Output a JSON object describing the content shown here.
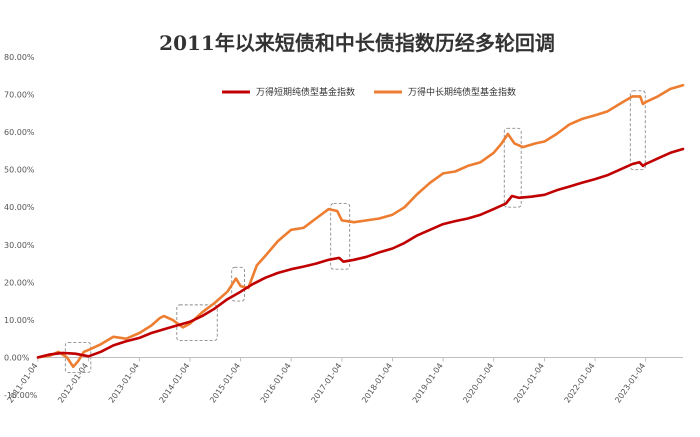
{
  "chart_data": {
    "type": "line",
    "title": "2011年以来短债和中长债指数历经多轮回调",
    "xlabel": "",
    "ylabel": "",
    "ylim": [
      -10,
      80
    ],
    "yticks": [
      "80.00%",
      "70.00%",
      "60.00%",
      "50.00%",
      "40.00%",
      "30.00%",
      "20.00%",
      "10.00%",
      "0.00%",
      "-10.00%"
    ],
    "xticks": [
      "2011-01-04",
      "2012-01-04",
      "2013-01-04",
      "2014-01-04",
      "2015-01-04",
      "2016-01-04",
      "2017-01-04",
      "2018-01-04",
      "2019-01-04",
      "2020-01-04",
      "2021-01-04",
      "2022-01-04",
      "2023-01-04"
    ],
    "xlim": [
      "2011-01-04",
      "2023-09-30"
    ],
    "legend_position": "top-center",
    "grid": false,
    "series": [
      {
        "name": "万得短期纯债型基金指数",
        "color": "#c00000",
        "points": [
          [
            "2011-01-04",
            0
          ],
          [
            "2011-04-01",
            0.8
          ],
          [
            "2011-07-01",
            1.2
          ],
          [
            "2011-10-01",
            1.0
          ],
          [
            "2012-01-04",
            0.3
          ],
          [
            "2012-04-01",
            1.5
          ],
          [
            "2012-07-01",
            3.2
          ],
          [
            "2012-10-01",
            4.3
          ],
          [
            "2013-01-04",
            5.2
          ],
          [
            "2013-04-01",
            6.5
          ],
          [
            "2013-07-01",
            7.5
          ],
          [
            "2013-10-01",
            8.5
          ],
          [
            "2014-01-04",
            9.5
          ],
          [
            "2014-04-01",
            11.0
          ],
          [
            "2014-07-01",
            13.0
          ],
          [
            "2014-10-01",
            15.5
          ],
          [
            "2015-01-04",
            17.5
          ],
          [
            "2015-04-01",
            19.5
          ],
          [
            "2015-07-01",
            21.2
          ],
          [
            "2015-10-01",
            22.5
          ],
          [
            "2016-01-04",
            23.5
          ],
          [
            "2016-04-01",
            24.2
          ],
          [
            "2016-07-01",
            25.0
          ],
          [
            "2016-10-01",
            26.0
          ],
          [
            "2016-12-15",
            26.5
          ],
          [
            "2017-01-15",
            25.5
          ],
          [
            "2017-04-01",
            26.0
          ],
          [
            "2017-07-01",
            26.8
          ],
          [
            "2017-10-01",
            28.0
          ],
          [
            "2018-01-04",
            29.0
          ],
          [
            "2018-04-01",
            30.5
          ],
          [
            "2018-07-01",
            32.5
          ],
          [
            "2018-10-01",
            34.0
          ],
          [
            "2019-01-04",
            35.5
          ],
          [
            "2019-04-01",
            36.3
          ],
          [
            "2019-07-01",
            37.0
          ],
          [
            "2019-10-01",
            38.0
          ],
          [
            "2020-01-04",
            39.5
          ],
          [
            "2020-04-01",
            41.0
          ],
          [
            "2020-05-15",
            43.0
          ],
          [
            "2020-07-01",
            42.5
          ],
          [
            "2020-10-01",
            42.8
          ],
          [
            "2021-01-04",
            43.3
          ],
          [
            "2021-04-01",
            44.5
          ],
          [
            "2021-07-01",
            45.5
          ],
          [
            "2021-10-01",
            46.5
          ],
          [
            "2022-01-04",
            47.5
          ],
          [
            "2022-04-01",
            48.5
          ],
          [
            "2022-07-01",
            50.0
          ],
          [
            "2022-10-01",
            51.5
          ],
          [
            "2022-11-20",
            52.0
          ],
          [
            "2022-12-15",
            51.0
          ],
          [
            "2023-01-04",
            51.5
          ],
          [
            "2023-04-01",
            53.0
          ],
          [
            "2023-07-01",
            54.5
          ],
          [
            "2023-09-30",
            55.5
          ]
        ]
      },
      {
        "name": "万得中长期纯债型基金指数",
        "color": "#ed7d31",
        "points": [
          [
            "2011-01-04",
            0
          ],
          [
            "2011-04-01",
            0.5
          ],
          [
            "2011-06-01",
            1.5
          ],
          [
            "2011-08-01",
            0
          ],
          [
            "2011-09-15",
            -2.5
          ],
          [
            "2011-10-20",
            -1.0
          ],
          [
            "2011-12-01",
            1.5
          ],
          [
            "2012-01-04",
            2.0
          ],
          [
            "2012-04-01",
            3.5
          ],
          [
            "2012-07-01",
            5.5
          ],
          [
            "2012-10-01",
            5.0
          ],
          [
            "2013-01-04",
            6.5
          ],
          [
            "2013-04-01",
            8.5
          ],
          [
            "2013-06-01",
            10.5
          ],
          [
            "2013-07-01",
            11.0
          ],
          [
            "2013-09-01",
            10.0
          ],
          [
            "2013-11-15",
            8.0
          ],
          [
            "2014-01-04",
            9.0
          ],
          [
            "2014-04-01",
            12.0
          ],
          [
            "2014-07-01",
            14.5
          ],
          [
            "2014-10-01",
            17.5
          ],
          [
            "2014-12-01",
            21.0
          ],
          [
            "2015-01-04",
            19.0
          ],
          [
            "2015-03-01",
            18.5
          ],
          [
            "2015-05-01",
            24.5
          ],
          [
            "2015-07-01",
            27.0
          ],
          [
            "2015-10-01",
            31.0
          ],
          [
            "2016-01-04",
            34.0
          ],
          [
            "2016-04-01",
            34.5
          ],
          [
            "2016-07-01",
            37.0
          ],
          [
            "2016-10-01",
            39.5
          ],
          [
            "2016-12-01",
            39.0
          ],
          [
            "2017-01-04",
            36.5
          ],
          [
            "2017-04-01",
            36.0
          ],
          [
            "2017-07-01",
            36.5
          ],
          [
            "2017-10-01",
            37.0
          ],
          [
            "2018-01-04",
            38.0
          ],
          [
            "2018-04-01",
            40.0
          ],
          [
            "2018-07-01",
            43.5
          ],
          [
            "2018-10-01",
            46.5
          ],
          [
            "2019-01-04",
            49.0
          ],
          [
            "2019-04-01",
            49.5
          ],
          [
            "2019-07-01",
            51.0
          ],
          [
            "2019-10-01",
            52.0
          ],
          [
            "2020-01-04",
            54.5
          ],
          [
            "2020-03-01",
            57.0
          ],
          [
            "2020-04-15",
            59.5
          ],
          [
            "2020-06-01",
            57.0
          ],
          [
            "2020-08-01",
            56.0
          ],
          [
            "2020-11-01",
            57.0
          ],
          [
            "2021-01-04",
            57.5
          ],
          [
            "2021-04-01",
            59.5
          ],
          [
            "2021-07-01",
            62.0
          ],
          [
            "2021-10-01",
            63.5
          ],
          [
            "2022-01-04",
            64.5
          ],
          [
            "2022-04-01",
            65.5
          ],
          [
            "2022-07-01",
            67.5
          ],
          [
            "2022-10-01",
            69.5
          ],
          [
            "2022-11-25",
            69.5
          ],
          [
            "2022-12-15",
            67.5
          ],
          [
            "2023-01-04",
            68.0
          ],
          [
            "2023-04-01",
            69.5
          ],
          [
            "2023-07-01",
            71.5
          ],
          [
            "2023-09-30",
            72.5
          ]
        ]
      }
    ],
    "highlight_boxes": [
      {
        "x": [
          "2011-07-20",
          "2012-01-20"
        ],
        "y": [
          -4,
          4
        ]
      },
      {
        "x": [
          "2013-10-01",
          "2014-07-20"
        ],
        "y": [
          4.5,
          14
        ]
      },
      {
        "x": [
          "2014-11-01",
          "2015-02-01"
        ],
        "y": [
          15,
          24
        ]
      },
      {
        "x": [
          "2016-10-15",
          "2017-03-01"
        ],
        "y": [
          23.5,
          41
        ]
      },
      {
        "x": [
          "2020-03-20",
          "2020-07-20"
        ],
        "y": [
          40,
          61
        ]
      },
      {
        "x": [
          "2022-09-15",
          "2023-01-01"
        ],
        "y": [
          50,
          71
        ]
      }
    ]
  }
}
